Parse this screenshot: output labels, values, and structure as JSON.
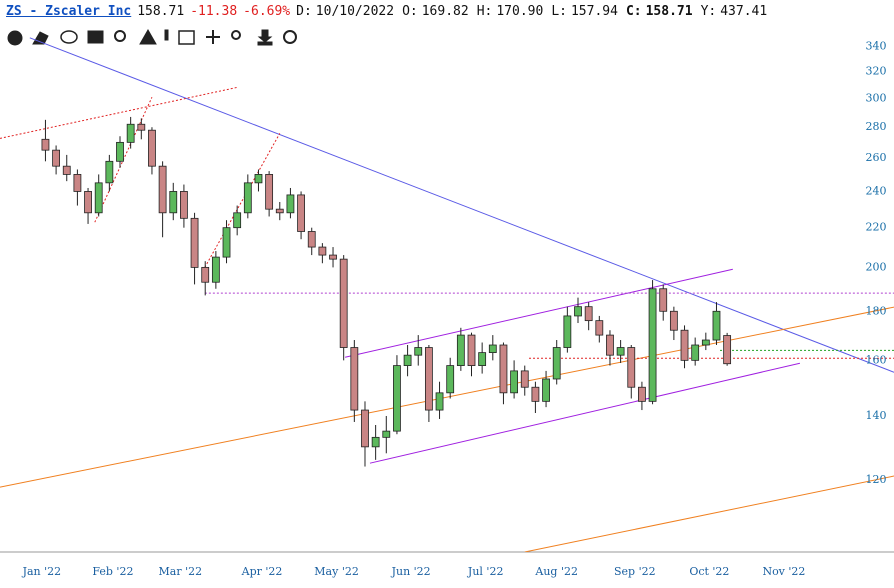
{
  "header": {
    "symbol": "ZS - Zscaler Inc",
    "last": "158.71",
    "change": "-11.38",
    "change_pct": "-6.69%",
    "fields": [
      {
        "label": "D:",
        "value": "10/10/2022"
      },
      {
        "label": "O:",
        "value": "169.82"
      },
      {
        "label": "H:",
        "value": "170.90"
      },
      {
        "label": "L:",
        "value": "157.94"
      },
      {
        "label": "C:",
        "value": "158.71"
      },
      {
        "label": "Y:",
        "value": "437.41"
      }
    ]
  },
  "chart_data": {
    "type": "candlestick",
    "log_scale": true,
    "up_color": "#5cb85c",
    "down_color": "#c98585",
    "ylim": [
      101,
      380
    ],
    "yticks": [
      120,
      140,
      160,
      180,
      200,
      220,
      240,
      260,
      280,
      300,
      320,
      340
    ],
    "xlim": [
      -11.8,
      240
    ],
    "xticks": [
      {
        "value": 0,
        "label": "Jan '22"
      },
      {
        "value": 20,
        "label": "Feb '22"
      },
      {
        "value": 39,
        "label": "Mar '22"
      },
      {
        "value": 62,
        "label": "Apr '22"
      },
      {
        "value": 83,
        "label": "May '22"
      },
      {
        "value": 104,
        "label": "Jun '22"
      },
      {
        "value": 125,
        "label": "Jul '22"
      },
      {
        "value": 145,
        "label": "Aug '22"
      },
      {
        "value": 167,
        "label": "Sep '22"
      },
      {
        "value": 188,
        "label": "Oct '22"
      },
      {
        "value": 209,
        "label": "Nov '22"
      }
    ],
    "x": [
      1,
      4,
      7,
      10,
      13,
      16,
      19,
      22,
      25,
      28,
      31,
      34,
      37,
      40,
      43,
      46,
      49,
      52,
      55,
      58,
      61,
      64,
      67,
      70,
      73,
      76,
      79,
      82,
      85,
      88,
      91,
      94,
      97,
      100,
      103,
      106,
      109,
      112,
      115,
      118,
      121,
      124,
      127,
      130,
      133,
      136,
      139,
      142,
      145,
      148,
      151,
      154,
      157,
      160,
      163,
      166,
      169,
      172,
      175,
      178,
      181,
      184,
      187,
      190,
      193
    ],
    "open": [
      272,
      265,
      255,
      250,
      240,
      228,
      245,
      258,
      270,
      282,
      278,
      255,
      228,
      240,
      225,
      200,
      193,
      205,
      220,
      228,
      245,
      250,
      230,
      228,
      238,
      218,
      210,
      206,
      204,
      165,
      142,
      130,
      133,
      135,
      158,
      162,
      165,
      142,
      148,
      158,
      170,
      158,
      163,
      166,
      148,
      156,
      150,
      145,
      153,
      165,
      178,
      182,
      176,
      170,
      162,
      165,
      150,
      145,
      190,
      180,
      172,
      160,
      166,
      168,
      169.82
    ],
    "high": [
      285,
      268,
      262,
      253,
      242,
      250,
      262,
      274,
      287,
      286,
      280,
      258,
      245,
      244,
      228,
      203,
      208,
      224,
      232,
      250,
      253,
      252,
      234,
      242,
      240,
      220,
      212,
      210,
      206,
      168,
      145,
      137,
      140,
      162,
      166,
      170,
      166,
      152,
      161,
      173,
      171,
      167,
      170,
      167,
      160,
      158,
      152,
      156,
      168,
      182,
      186,
      184,
      178,
      172,
      168,
      166,
      152,
      194,
      192,
      182,
      174,
      169,
      171,
      184,
      170.9
    ],
    "low": [
      258,
      250,
      246,
      232,
      222,
      226,
      240,
      254,
      266,
      272,
      250,
      215,
      224,
      220,
      192,
      187,
      190,
      202,
      216,
      225,
      240,
      226,
      224,
      225,
      214,
      206,
      202,
      200,
      160,
      138,
      124,
      126,
      128,
      134,
      154,
      158,
      138,
      139,
      146,
      156,
      154,
      155,
      160,
      144,
      146,
      147,
      141,
      143,
      151,
      163,
      175,
      172,
      167,
      158,
      159,
      146,
      142,
      144,
      176,
      168,
      157,
      158,
      164,
      166,
      157.94
    ],
    "close": [
      265,
      255,
      250,
      240,
      228,
      245,
      258,
      270,
      282,
      278,
      255,
      228,
      240,
      225,
      200,
      193,
      205,
      220,
      228,
      245,
      250,
      230,
      228,
      238,
      218,
      210,
      206,
      204,
      165,
      142,
      130,
      133,
      135,
      158,
      162,
      165,
      142,
      148,
      158,
      170,
      158,
      163,
      166,
      148,
      156,
      150,
      145,
      153,
      165,
      178,
      182,
      176,
      170,
      162,
      165,
      150,
      145,
      190,
      180,
      172,
      160,
      166,
      168,
      180,
      158.71
    ],
    "trend_lines": [
      {
        "color": "#5a5ae6",
        "style": "solid",
        "x": [
          -3.4,
          240
        ],
        "y": [
          347,
          155.5
        ]
      },
      {
        "color": "#a020e0",
        "style": "solid",
        "x": [
          85.4,
          194.6
        ],
        "y": [
          161.2,
          199.1
        ]
      },
      {
        "color": "#a020e0",
        "style": "solid",
        "x": [
          92.4,
          213.5
        ],
        "y": [
          125,
          158.9
        ]
      },
      {
        "color": "#f08020",
        "style": "solid",
        "x": [
          -11.8,
          240
        ],
        "y": [
          118,
          181.8
        ]
      },
      {
        "color": "#f08020",
        "style": "solid",
        "x": [
          136,
          240
        ],
        "y": [
          101,
          121.2
        ]
      },
      {
        "color": "#b040d0",
        "style": "dotted",
        "x": [
          45.9,
          240
        ],
        "y": [
          188,
          188
        ]
      },
      {
        "color": "#e02020",
        "style": "dotted",
        "x": [
          -11.8,
          55.2
        ],
        "y": [
          272.6,
          308.2
        ]
      },
      {
        "color": "#e02020",
        "style": "dotted",
        "x": [
          14.9,
          31
        ],
        "y": [
          222.9,
          300.9
        ]
      },
      {
        "color": "#e02020",
        "style": "dotted",
        "x": [
          45.9,
          67
        ],
        "y": [
          200,
          275.9
        ]
      },
      {
        "color": "#e02020",
        "style": "dotted",
        "x": [
          137.2,
          240
        ],
        "y": [
          160.8,
          160.8
        ]
      },
      {
        "color": "#20a020",
        "style": "dotted",
        "x": [
          191,
          240
        ],
        "y": [
          163.9,
          163.9
        ]
      }
    ]
  }
}
